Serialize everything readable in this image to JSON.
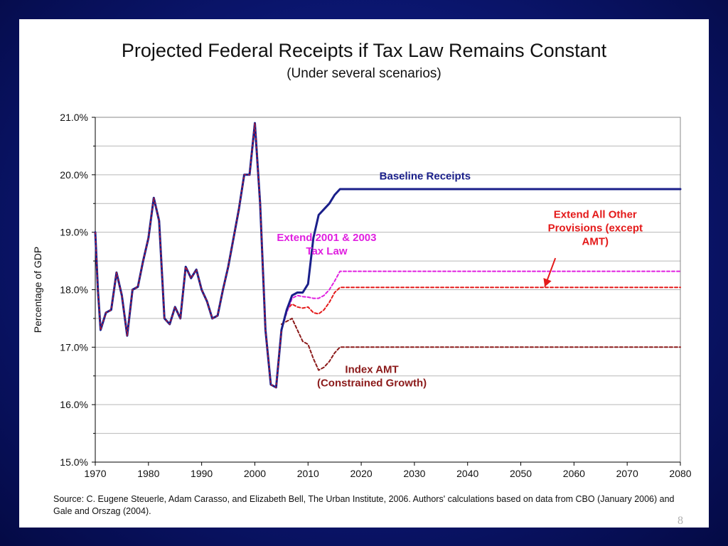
{
  "slide": {
    "title": "Projected Federal Receipts if Tax Law Remains Constant",
    "subtitle": "(Under several scenarios)",
    "source": "Source:  C. Eugene Steuerle, Adam Carasso, and Elizabeth Bell, The Urban Institute, 2006.  Authors' calculations based on data from CBO (January 2006) and Gale and Orszag (2004).",
    "page_number": "8"
  },
  "chart_data": {
    "type": "line",
    "title": "Projected Federal Receipts if Tax Law Remains Constant",
    "subtitle": "(Under several scenarios)",
    "xlabel": "",
    "ylabel": "Percentage of GDP",
    "xlim": [
      1970,
      2080
    ],
    "ylim": [
      15.0,
      21.0
    ],
    "grid": true,
    "x_ticks": [
      "1970",
      "1980",
      "1990",
      "2000",
      "2010",
      "2020",
      "2030",
      "2040",
      "2050",
      "2060",
      "2070",
      "2080"
    ],
    "x_tick_values": [
      1970,
      1980,
      1990,
      2000,
      2010,
      2020,
      2030,
      2040,
      2050,
      2060,
      2070,
      2080
    ],
    "y_ticks": [
      "15.0%",
      "16.0%",
      "17.0%",
      "18.0%",
      "19.0%",
      "20.0%",
      "21.0%"
    ],
    "y_tick_values": [
      15.0,
      16.0,
      17.0,
      18.0,
      19.0,
      20.0,
      21.0
    ],
    "series": [
      {
        "name": "Baseline Receipts",
        "color": "#1a1f8a",
        "style": "solid",
        "x": [
          1970,
          1970.5,
          1971,
          1972,
          1973,
          1974,
          1975,
          1976,
          1977,
          1978,
          1979,
          1980,
          1981,
          1982,
          1983,
          1984,
          1985,
          1986,
          1987,
          1988,
          1989,
          1990,
          1991,
          1992,
          1993,
          1994,
          1995,
          1996,
          1997,
          1998,
          1999,
          2000,
          2001,
          2002,
          2003,
          2004,
          2005,
          2006,
          2007,
          2008,
          2009,
          2010,
          2011,
          2012,
          2013,
          2014,
          2015,
          2016,
          2020,
          2030,
          2040,
          2050,
          2060,
          2070,
          2080
        ],
        "y": [
          19.0,
          18.0,
          17.3,
          17.6,
          17.65,
          18.3,
          17.9,
          17.2,
          18.0,
          18.05,
          18.5,
          18.9,
          19.6,
          19.2,
          17.5,
          17.4,
          17.7,
          17.5,
          18.4,
          18.2,
          18.35,
          18.0,
          17.8,
          17.5,
          17.55,
          18.0,
          18.4,
          18.9,
          19.4,
          20.0,
          20.0,
          20.9,
          19.5,
          17.3,
          16.35,
          16.3,
          17.3,
          17.65,
          17.9,
          17.95,
          17.95,
          18.1,
          18.9,
          19.3,
          19.4,
          19.5,
          19.65,
          19.75,
          19.75,
          19.75,
          19.75,
          19.75,
          19.75,
          19.75,
          19.75
        ]
      },
      {
        "name": "Extend 2001 & 2003 Tax Law",
        "color": "#e020e0",
        "style": "dashed",
        "x": [
          2005,
          2006,
          2007,
          2008,
          2009,
          2010,
          2011,
          2012,
          2013,
          2014,
          2015,
          2016,
          2020,
          2030,
          2040,
          2050,
          2060,
          2070,
          2080
        ],
        "y": [
          17.3,
          17.6,
          17.85,
          17.9,
          17.88,
          17.87,
          17.85,
          17.85,
          17.9,
          18.0,
          18.15,
          18.32,
          18.32,
          18.32,
          18.32,
          18.32,
          18.32,
          18.32,
          18.32
        ]
      },
      {
        "name": "Extend All Other Provisions (except AMT)",
        "color": "#e41a1a",
        "style": "dashed",
        "x": [
          2005,
          2006,
          2007,
          2008,
          2009,
          2010,
          2011,
          2012,
          2013,
          2014,
          2015,
          2016,
          2020,
          2030,
          2040,
          2050,
          2060,
          2070,
          2080
        ],
        "y": [
          17.3,
          17.65,
          17.75,
          17.7,
          17.68,
          17.7,
          17.6,
          17.58,
          17.65,
          17.78,
          17.95,
          18.04,
          18.04,
          18.04,
          18.04,
          18.04,
          18.04,
          18.04,
          18.04
        ]
      },
      {
        "name": "Index AMT (Constrained Growth)",
        "color": "#8b1a1a",
        "style": "dashed",
        "x": [
          2005,
          2006,
          2007,
          2008,
          2009,
          2010,
          2011,
          2012,
          2013,
          2014,
          2015,
          2016,
          2020,
          2030,
          2040,
          2050,
          2060,
          2070,
          2080
        ],
        "y": [
          17.4,
          17.45,
          17.5,
          17.3,
          17.1,
          17.05,
          16.8,
          16.6,
          16.65,
          16.75,
          16.9,
          17.0,
          17.0,
          17.0,
          17.0,
          17.0,
          17.0,
          17.0,
          17.0
        ]
      }
    ],
    "annotations": {
      "baseline": {
        "lines": [
          "Baseline Receipts"
        ],
        "color": "#1a1f8a",
        "x": 2032,
        "y": 19.92
      },
      "extend_2001": {
        "lines": [
          "Extend 2001 & 2003",
          "Tax Law"
        ],
        "color": "#e020e0",
        "x": 2013.5,
        "y": 18.85
      },
      "extend_other": {
        "lines": [
          "Extend All Other",
          "Provisions (except",
          "AMT)"
        ],
        "color": "#e41a1a",
        "x": 2064,
        "y": 19.25
      },
      "index_amt": {
        "lines": [
          "Index AMT",
          "(Constrained Growth)"
        ],
        "color": "#8b1a1a",
        "x": 2022,
        "y": 16.55
      },
      "arrow": {
        "color": "#e41a1a",
        "from_x": 2056.5,
        "from_y": 18.55,
        "to_x": 2054.5,
        "to_y": 18.05
      }
    },
    "colors": {
      "grid": "#b8b8b8",
      "axis": "#000000",
      "slide_background": "#0b1670"
    }
  }
}
